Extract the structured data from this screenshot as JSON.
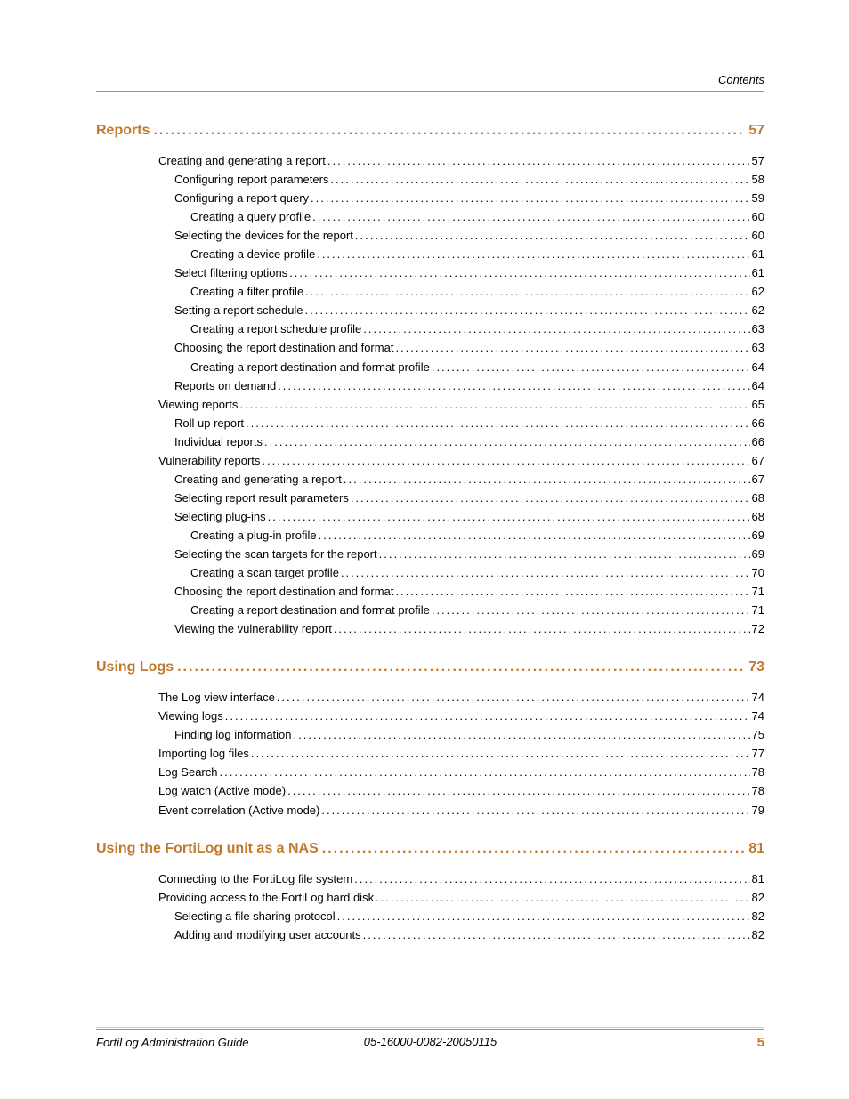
{
  "header": {
    "right_label": "Contents"
  },
  "footer": {
    "left": "FortiLog Administration Guide",
    "center": "05-16000-0082-20050115",
    "page_number": "5"
  },
  "colors": {
    "accent": "#c17a2d",
    "rule": "#c68b4a",
    "text": "#000000",
    "background": "#ffffff"
  },
  "typography": {
    "body_font_size_pt": 10,
    "heading_font_size_pt": 12,
    "font_family": "Arial"
  },
  "toc": {
    "sections": [
      {
        "title": "Reports",
        "page": "57",
        "entries": [
          {
            "level": 0,
            "title": "Creating and generating a report",
            "page": "57"
          },
          {
            "level": 1,
            "title": "Configuring report parameters",
            "page": "58"
          },
          {
            "level": 1,
            "title": "Configuring a report query",
            "page": "59"
          },
          {
            "level": 2,
            "title": "Creating a query profile",
            "page": "60"
          },
          {
            "level": 1,
            "title": "Selecting the devices for the report",
            "page": "60"
          },
          {
            "level": 2,
            "title": "Creating a device profile",
            "page": "61"
          },
          {
            "level": 1,
            "title": "Select filtering options",
            "page": "61"
          },
          {
            "level": 2,
            "title": "Creating a filter profile",
            "page": "62"
          },
          {
            "level": 1,
            "title": "Setting a report schedule",
            "page": "62"
          },
          {
            "level": 2,
            "title": "Creating a report schedule profile",
            "page": "63"
          },
          {
            "level": 1,
            "title": "Choosing the report destination and format",
            "page": "63"
          },
          {
            "level": 2,
            "title": "Creating a report destination and format profile",
            "page": "64"
          },
          {
            "level": 1,
            "title": "Reports on demand",
            "page": "64"
          },
          {
            "level": 0,
            "title": "Viewing reports",
            "page": "65"
          },
          {
            "level": 1,
            "title": "Roll up report",
            "page": "66"
          },
          {
            "level": 1,
            "title": "Individual reports",
            "page": "66"
          },
          {
            "level": 0,
            "title": "Vulnerability reports",
            "page": "67"
          },
          {
            "level": 1,
            "title": "Creating and generating a report",
            "page": "67"
          },
          {
            "level": 1,
            "title": "Selecting report result parameters",
            "page": "68"
          },
          {
            "level": 1,
            "title": "Selecting plug-ins",
            "page": "68"
          },
          {
            "level": 2,
            "title": "Creating a plug-in profile",
            "page": "69"
          },
          {
            "level": 1,
            "title": "Selecting the scan targets for the report",
            "page": "69"
          },
          {
            "level": 2,
            "title": "Creating a scan target profile",
            "page": "70"
          },
          {
            "level": 1,
            "title": "Choosing the report destination and format",
            "page": "71"
          },
          {
            "level": 2,
            "title": "Creating a report destination and format profile",
            "page": "71"
          },
          {
            "level": 1,
            "title": "Viewing the vulnerability report",
            "page": "72"
          }
        ]
      },
      {
        "title": "Using Logs",
        "page": "73",
        "entries": [
          {
            "level": 0,
            "title": "The Log view interface",
            "page": "74"
          },
          {
            "level": 0,
            "title": "Viewing logs",
            "page": "74"
          },
          {
            "level": 1,
            "title": "Finding log information",
            "page": "75"
          },
          {
            "level": 0,
            "title": "Importing log files",
            "page": "77"
          },
          {
            "level": 0,
            "title": "Log Search",
            "page": "78"
          },
          {
            "level": 0,
            "title": "Log watch (Active mode)",
            "page": "78"
          },
          {
            "level": 0,
            "title": "Event correlation (Active mode)",
            "page": "79"
          }
        ]
      },
      {
        "title": "Using the FortiLog unit as a NAS",
        "page": "81",
        "entries": [
          {
            "level": 0,
            "title": "Connecting to the FortiLog file system",
            "page": "81"
          },
          {
            "level": 0,
            "title": "Providing access to the FortiLog hard disk",
            "page": "82"
          },
          {
            "level": 1,
            "title": "Selecting a file sharing protocol",
            "page": "82"
          },
          {
            "level": 1,
            "title": "Adding and modifying user accounts",
            "page": "82"
          }
        ]
      }
    ]
  }
}
